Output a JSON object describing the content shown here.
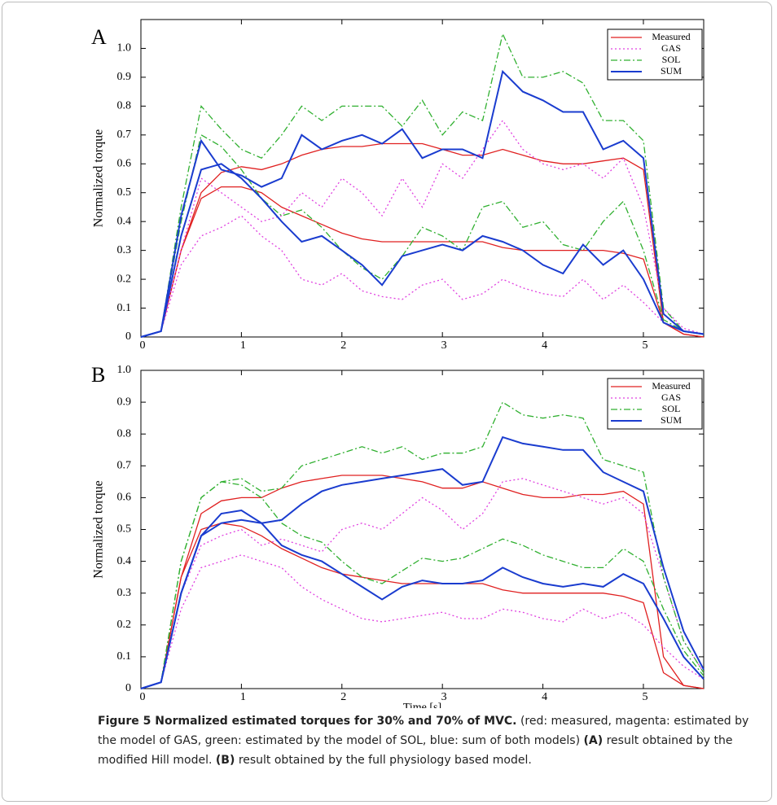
{
  "chart_data": [
    {
      "type": "line",
      "panel_label": "A",
      "ylabel": "Normalized torque",
      "legend": "upper right",
      "x": [
        0,
        0.2,
        0.4,
        0.6,
        0.8,
        1,
        1.2,
        1.4,
        1.6,
        1.8,
        2,
        2.2,
        2.4,
        2.6,
        2.8,
        3,
        3.2,
        3.4,
        3.6,
        3.8,
        4,
        4.2,
        4.4,
        4.6,
        4.8,
        5,
        5.2,
        5.4,
        5.6
      ],
      "xlim": [
        0,
        5.6
      ],
      "xticks": [
        0,
        1,
        2,
        3,
        4,
        5
      ],
      "ylim": [
        0,
        1.1
      ],
      "yticks": [
        0,
        0.1,
        0.2,
        0.3,
        0.4,
        0.5,
        0.6,
        0.7,
        0.8,
        0.9,
        {
          "value": 1,
          "label": "1.0"
        }
      ],
      "series": [
        {
          "name": "Measured",
          "color": "#e02020",
          "dash": "solid",
          "trials": [
            {
              "values": [
                0,
                0.02,
                0.3,
                0.5,
                0.57,
                0.59,
                0.58,
                0.6,
                0.63,
                0.65,
                0.66,
                0.66,
                0.67,
                0.67,
                0.67,
                0.65,
                0.63,
                0.63,
                0.65,
                0.63,
                0.61,
                0.6,
                0.6,
                0.61,
                0.62,
                0.58,
                0.05,
                0.01,
                0
              ]
            },
            {
              "values": [
                0,
                0.02,
                0.3,
                0.48,
                0.52,
                0.52,
                0.5,
                0.45,
                0.42,
                0.39,
                0.36,
                0.34,
                0.33,
                0.33,
                0.33,
                0.33,
                0.33,
                0.33,
                0.31,
                0.3,
                0.3,
                0.3,
                0.3,
                0.3,
                0.29,
                0.27,
                0.05,
                0.01,
                0
              ]
            }
          ]
        },
        {
          "name": "GAS",
          "color": "#e040e0",
          "dash": "dotted",
          "trials": [
            {
              "values": [
                0,
                0.02,
                0.3,
                0.55,
                0.5,
                0.45,
                0.4,
                0.42,
                0.5,
                0.45,
                0.55,
                0.5,
                0.42,
                0.55,
                0.45,
                0.6,
                0.55,
                0.65,
                0.75,
                0.65,
                0.6,
                0.58,
                0.6,
                0.55,
                0.62,
                0.45,
                0.1,
                0.03,
                0.01
              ]
            },
            {
              "values": [
                0,
                0.02,
                0.25,
                0.35,
                0.38,
                0.42,
                0.35,
                0.3,
                0.2,
                0.18,
                0.22,
                0.16,
                0.14,
                0.13,
                0.18,
                0.2,
                0.13,
                0.15,
                0.2,
                0.17,
                0.15,
                0.14,
                0.2,
                0.13,
                0.18,
                0.12,
                0.05,
                0.02,
                0.01
              ]
            }
          ]
        },
        {
          "name": "SOL",
          "color": "#30b030",
          "dash": "dashdot",
          "trials": [
            {
              "values": [
                0,
                0.02,
                0.45,
                0.8,
                0.72,
                0.65,
                0.62,
                0.7,
                0.8,
                0.75,
                0.8,
                0.8,
                0.8,
                0.73,
                0.82,
                0.7,
                0.78,
                0.75,
                1.05,
                0.9,
                0.9,
                0.92,
                0.88,
                0.75,
                0.75,
                0.68,
                0.1,
                0.02,
                0.01
              ]
            },
            {
              "values": [
                0,
                0.02,
                0.4,
                0.7,
                0.66,
                0.58,
                0.48,
                0.42,
                0.44,
                0.38,
                0.3,
                0.24,
                0.2,
                0.28,
                0.38,
                0.35,
                0.3,
                0.45,
                0.47,
                0.38,
                0.4,
                0.32,
                0.3,
                0.4,
                0.47,
                0.3,
                0.06,
                0.02,
                0.01
              ]
            }
          ]
        },
        {
          "name": "SUM",
          "color": "#1a3ccf",
          "dash": "solid",
          "trials": [
            {
              "values": [
                0,
                0.02,
                0.42,
                0.68,
                0.58,
                0.56,
                0.52,
                0.55,
                0.7,
                0.65,
                0.68,
                0.7,
                0.67,
                0.72,
                0.62,
                0.65,
                0.65,
                0.62,
                0.92,
                0.85,
                0.82,
                0.78,
                0.78,
                0.65,
                0.68,
                0.62,
                0.08,
                0.02,
                0.01
              ]
            },
            {
              "values": [
                0,
                0.02,
                0.35,
                0.58,
                0.6,
                0.55,
                0.48,
                0.4,
                0.33,
                0.35,
                0.3,
                0.25,
                0.18,
                0.28,
                0.3,
                0.32,
                0.3,
                0.35,
                0.33,
                0.3,
                0.25,
                0.22,
                0.32,
                0.25,
                0.3,
                0.2,
                0.05,
                0.02,
                0.01
              ]
            }
          ]
        }
      ]
    },
    {
      "type": "line",
      "panel_label": "B",
      "ylabel": "Normalized torque",
      "xlabel": "Time [s]",
      "legend": "upper right",
      "x": [
        0,
        0.2,
        0.4,
        0.6,
        0.8,
        1,
        1.2,
        1.4,
        1.6,
        1.8,
        2,
        2.2,
        2.4,
        2.6,
        2.8,
        3,
        3.2,
        3.4,
        3.6,
        3.8,
        4,
        4.2,
        4.4,
        4.6,
        4.8,
        5,
        5.2,
        5.4,
        5.6
      ],
      "xlim": [
        0,
        5.6
      ],
      "xticks": [
        0,
        1,
        2,
        3,
        4,
        5
      ],
      "ylim": [
        0,
        1
      ],
      "yticks": [
        0,
        0.1,
        0.2,
        0.3,
        0.4,
        0.5,
        0.6,
        0.7,
        0.8,
        0.9,
        {
          "value": 1,
          "label": "1.0"
        }
      ],
      "series": [
        {
          "name": "Measured",
          "color": "#e02020",
          "dash": "solid",
          "trials": [
            {
              "values": [
                0,
                0.02,
                0.35,
                0.55,
                0.59,
                0.6,
                0.6,
                0.63,
                0.65,
                0.66,
                0.67,
                0.67,
                0.67,
                0.66,
                0.65,
                0.63,
                0.63,
                0.65,
                0.63,
                0.61,
                0.6,
                0.6,
                0.61,
                0.61,
                0.62,
                0.58,
                0.1,
                0.01,
                0
              ]
            },
            {
              "values": [
                0,
                0.02,
                0.35,
                0.5,
                0.52,
                0.51,
                0.48,
                0.44,
                0.41,
                0.38,
                0.36,
                0.35,
                0.34,
                0.33,
                0.33,
                0.33,
                0.33,
                0.33,
                0.31,
                0.3,
                0.3,
                0.3,
                0.3,
                0.3,
                0.29,
                0.27,
                0.05,
                0.01,
                0
              ]
            }
          ]
        },
        {
          "name": "GAS",
          "color": "#e040e0",
          "dash": "dotted",
          "trials": [
            {
              "values": [
                0,
                0.02,
                0.3,
                0.45,
                0.48,
                0.5,
                0.45,
                0.47,
                0.45,
                0.43,
                0.5,
                0.52,
                0.5,
                0.55,
                0.6,
                0.56,
                0.5,
                0.55,
                0.65,
                0.66,
                0.64,
                0.62,
                0.6,
                0.58,
                0.6,
                0.55,
                0.35,
                0.15,
                0.05
              ]
            },
            {
              "values": [
                0,
                0.02,
                0.25,
                0.38,
                0.4,
                0.42,
                0.4,
                0.38,
                0.32,
                0.28,
                0.25,
                0.22,
                0.21,
                0.22,
                0.23,
                0.24,
                0.22,
                0.22,
                0.25,
                0.24,
                0.22,
                0.21,
                0.25,
                0.22,
                0.24,
                0.2,
                0.13,
                0.07,
                0.03
              ]
            }
          ]
        },
        {
          "name": "SOL",
          "color": "#30b030",
          "dash": "dashdot",
          "trials": [
            {
              "values": [
                0,
                0.02,
                0.4,
                0.6,
                0.65,
                0.66,
                0.62,
                0.63,
                0.7,
                0.72,
                0.74,
                0.76,
                0.74,
                0.76,
                0.72,
                0.74,
                0.74,
                0.76,
                0.9,
                0.86,
                0.85,
                0.86,
                0.85,
                0.72,
                0.7,
                0.68,
                0.35,
                0.15,
                0.05
              ]
            },
            {
              "values": [
                0,
                0.02,
                0.4,
                0.6,
                0.65,
                0.64,
                0.6,
                0.52,
                0.48,
                0.46,
                0.4,
                0.35,
                0.33,
                0.37,
                0.41,
                0.4,
                0.41,
                0.44,
                0.47,
                0.45,
                0.42,
                0.4,
                0.38,
                0.38,
                0.44,
                0.4,
                0.25,
                0.12,
                0.04
              ]
            }
          ]
        },
        {
          "name": "SUM",
          "color": "#1a3ccf",
          "dash": "solid",
          "trials": [
            {
              "values": [
                0,
                0.02,
                0.3,
                0.48,
                0.52,
                0.53,
                0.52,
                0.53,
                0.58,
                0.62,
                0.64,
                0.65,
                0.66,
                0.67,
                0.68,
                0.69,
                0.64,
                0.65,
                0.79,
                0.77,
                0.76,
                0.75,
                0.75,
                0.68,
                0.65,
                0.62,
                0.38,
                0.18,
                0.06
              ]
            },
            {
              "values": [
                0,
                0.02,
                0.3,
                0.48,
                0.55,
                0.56,
                0.52,
                0.45,
                0.42,
                0.4,
                0.36,
                0.32,
                0.28,
                0.32,
                0.34,
                0.33,
                0.33,
                0.34,
                0.38,
                0.35,
                0.33,
                0.32,
                0.33,
                0.32,
                0.36,
                0.33,
                0.22,
                0.1,
                0.03
              ]
            }
          ]
        }
      ]
    }
  ],
  "caption": {
    "title": "Figure 5 Normalized estimated torques for 30% and 70% of MVC.",
    "text1": "(red: measured, magenta: estimated by the model of GAS, green: estimated by the model of SOL, blue: sum of both models)",
    "a": "(A)",
    "text2": "result obtained by the modified Hill model.",
    "b": "(B)",
    "text3": "result obtained by the full physiology based model."
  }
}
